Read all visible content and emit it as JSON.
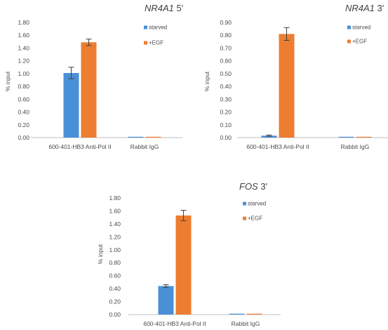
{
  "colors": {
    "starved": "#4a90d6",
    "egf": "#ed7d31",
    "axis": "#bfbfbf",
    "err": "#404040"
  },
  "chart_data": [
    {
      "type": "bar",
      "title_gene": "NR4A1",
      "title_suffix": " 5'",
      "ylabel": "% input",
      "ylim": [
        0,
        1.8
      ],
      "yticks": [
        "0.00",
        "0.20",
        "0.40",
        "0.60",
        "0.80",
        "1.00",
        "1.20",
        "1.40",
        "1.60",
        "1.80"
      ],
      "categories": [
        "600-401-HB3 Anti-Pol II",
        "Rabbit IgG"
      ],
      "series": [
        {
          "name": "starved",
          "values": [
            1.01,
            0.01
          ],
          "errors": [
            0.09,
            0.0
          ]
        },
        {
          "name": "+EGF",
          "values": [
            1.49,
            0.01
          ],
          "errors": [
            0.05,
            0.0
          ]
        }
      ],
      "legend": "top-right"
    },
    {
      "type": "bar",
      "title_gene": "NR4A1",
      "title_suffix": " 3'",
      "ylabel": "% input",
      "ylim": [
        0,
        0.9
      ],
      "yticks": [
        "0.00",
        "0.10",
        "0.20",
        "0.30",
        "0.40",
        "0.50",
        "0.60",
        "0.70",
        "0.80",
        "0.90"
      ],
      "categories": [
        "600-401-HB3 Anti-Pol II",
        "Rabbit IgG"
      ],
      "series": [
        {
          "name": "starved",
          "values": [
            0.015,
            0.005
          ],
          "errors": [
            0.005,
            0.0
          ]
        },
        {
          "name": "+EGF",
          "values": [
            0.81,
            0.005
          ],
          "errors": [
            0.05,
            0.0
          ]
        }
      ],
      "legend": "top-right"
    },
    {
      "type": "bar",
      "title_gene": "FOS",
      "title_suffix": " 3'",
      "ylabel": "% input",
      "ylim": [
        0,
        1.8
      ],
      "yticks": [
        "0.00",
        "0.20",
        "0.40",
        "0.60",
        "0.80",
        "1.00",
        "1.20",
        "1.40",
        "1.60",
        "1.80"
      ],
      "categories": [
        "600-401-HB3 Anti-Pol II",
        "Rabbit IgG"
      ],
      "series": [
        {
          "name": "starved",
          "values": [
            0.44,
            0.01
          ],
          "errors": [
            0.02,
            0.0
          ]
        },
        {
          "name": "+EGF",
          "values": [
            1.53,
            0.01
          ],
          "errors": [
            0.08,
            0.0
          ]
        }
      ],
      "legend": "top-right"
    }
  ]
}
